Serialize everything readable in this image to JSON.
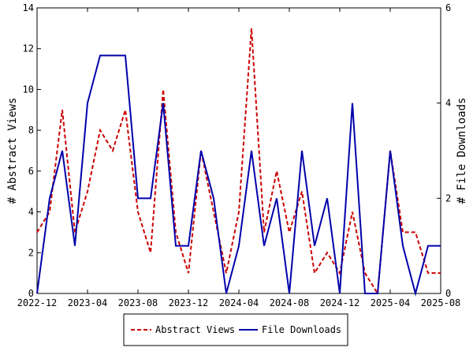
{
  "chart_data": {
    "type": "line",
    "x_ticks": [
      "2022-12",
      "2023-04",
      "2023-08",
      "2023-12",
      "2024-04",
      "2024-08",
      "2024-12",
      "2025-04",
      "2025-08"
    ],
    "x_range": [
      "2022-12",
      "2025-08"
    ],
    "ylabel_left": "# Abstract Views",
    "ylabel_right": "# File Downloads",
    "ylim_left": [
      0,
      14
    ],
    "ylim_right": [
      0,
      6
    ],
    "yticks_left": [
      0,
      2,
      4,
      6,
      8,
      10,
      12,
      14
    ],
    "yticks_right": [
      0,
      2,
      4,
      6
    ],
    "grid": false,
    "legend": "bottom-center",
    "series": [
      {
        "name": "Abstract Views",
        "axis": "left",
        "color": "#cc0000",
        "style": "dashed",
        "x": [
          "2022-12",
          "2023-01",
          "2023-02",
          "2023-03",
          "2023-04",
          "2023-05",
          "2023-06",
          "2023-07",
          "2023-08",
          "2023-09",
          "2023-10",
          "2023-11",
          "2023-12",
          "2024-01",
          "2024-02",
          "2024-03",
          "2024-04",
          "2024-05",
          "2024-06",
          "2024-07",
          "2024-08",
          "2024-09",
          "2024-10",
          "2024-11",
          "2024-12",
          "2025-01",
          "2025-02",
          "2025-03",
          "2025-04",
          "2025-05",
          "2025-06",
          "2025-07",
          "2025-08"
        ],
        "values": [
          3,
          4,
          9,
          3,
          5,
          8,
          7,
          9,
          4,
          2,
          10,
          3,
          1,
          7,
          4,
          1,
          4,
          13,
          3,
          6,
          3,
          5,
          1,
          2,
          1,
          4,
          1,
          0,
          7,
          3,
          3,
          1,
          1
        ]
      },
      {
        "name": "File Downloads",
        "axis": "right",
        "color": "#0000aa",
        "style": "solid",
        "x": [
          "2022-12",
          "2023-01",
          "2023-02",
          "2023-03",
          "2023-04",
          "2023-05",
          "2023-06",
          "2023-07",
          "2023-08",
          "2023-09",
          "2023-10",
          "2023-11",
          "2023-12",
          "2024-01",
          "2024-02",
          "2024-03",
          "2024-04",
          "2024-05",
          "2024-06",
          "2024-07",
          "2024-08",
          "2024-09",
          "2024-10",
          "2024-11",
          "2024-12",
          "2025-01",
          "2025-02",
          "2025-03",
          "2025-04",
          "2025-05",
          "2025-06",
          "2025-07",
          "2025-08"
        ],
        "values": [
          0,
          2,
          3,
          1,
          4,
          5,
          5,
          5,
          2,
          2,
          4,
          1,
          1,
          3,
          2,
          0,
          1,
          3,
          1,
          2,
          0,
          3,
          1,
          2,
          0,
          4,
          0,
          0,
          3,
          1,
          0,
          1,
          1
        ]
      }
    ]
  }
}
